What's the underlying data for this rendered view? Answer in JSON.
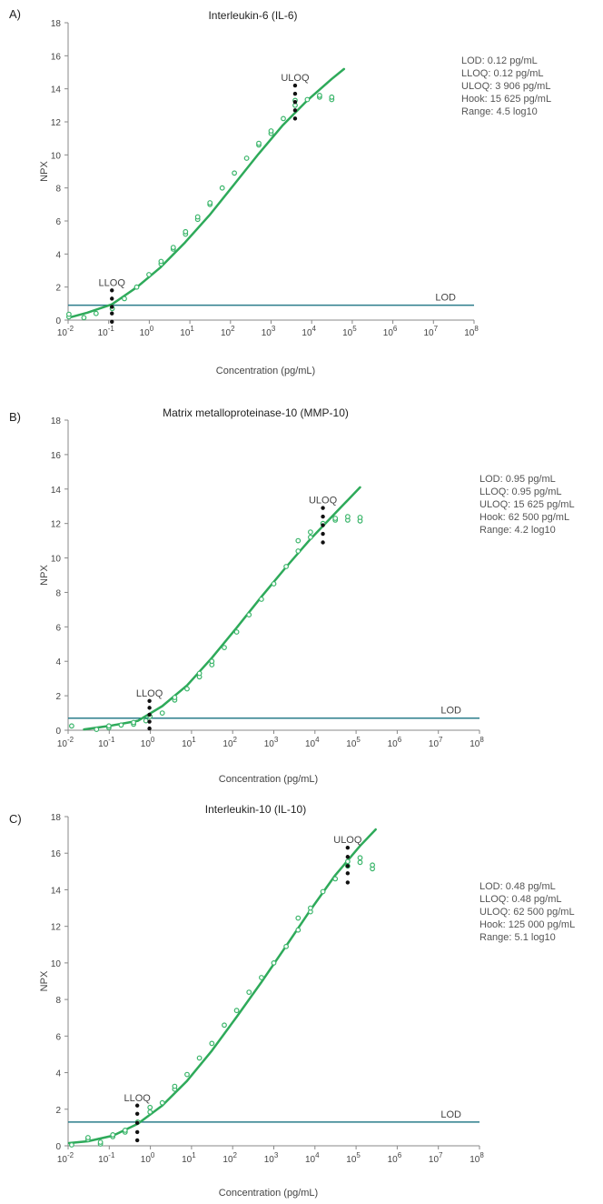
{
  "chart_data": [
    {
      "panel_label": "A)",
      "type": "scatter",
      "title": "Interleukin-6 (IL-6)",
      "xlabel": "Concentration (pg/mL)",
      "ylabel": "NPX",
      "x_scale": "log",
      "xlim_exp": [
        -2,
        8
      ],
      "ylim": [
        0,
        18
      ],
      "x_tick_exponents": [
        "-2",
        "-1",
        "0",
        "1",
        "2",
        "3",
        "4",
        "5",
        "6",
        "7",
        "8"
      ],
      "y_ticks": [
        0,
        2,
        4,
        6,
        8,
        10,
        12,
        14,
        16,
        18
      ],
      "grid": false,
      "lod_label": "LOD",
      "lloq_label": "LLOQ",
      "uloq_label": "ULOQ",
      "lod_value": 0.9,
      "lloq_x": 0.12,
      "uloq_x": 3906,
      "lloq_dots_y": [
        -0.1,
        0.4,
        0.8,
        1.3,
        1.8
      ],
      "uloq_dots_y": [
        12.2,
        12.7,
        13.2,
        13.7,
        14.2
      ],
      "info": [
        "LOD: 0.12 pg/mL",
        "LLOQ: 0.12 pg/mL",
        "ULOQ: 3 906 pg/mL",
        "Hook: 15 625 pg/mL",
        "Range: 4.5 log10"
      ],
      "series": [
        {
          "values": [
            [
              0.0105,
              0.15
            ],
            [
              0.03,
              0.45
            ],
            [
              0.12,
              0.95
            ],
            [
              0.5,
              2.0
            ],
            [
              1.9,
              3.2
            ],
            [
              7.6,
              4.7
            ],
            [
              30.5,
              6.35
            ],
            [
              122,
              8.2
            ],
            [
              488,
              10.05
            ],
            [
              1953,
              11.8
            ],
            [
              7812,
              13.3
            ],
            [
              31250,
              14.6
            ],
            [
              62500,
              15.2
            ]
          ]
        },
        {
          "values": [
            [
              0.0105,
              0.2
            ],
            [
              0.0105,
              0.35
            ],
            [
              0.0245,
              0.15
            ],
            [
              0.0488,
              0.4
            ],
            [
              0.122,
              0.7
            ],
            [
              0.244,
              1.3
            ],
            [
              0.488,
              2.0
            ],
            [
              0.98,
              2.75
            ],
            [
              1.95,
              3.4
            ],
            [
              1.95,
              3.55
            ],
            [
              3.9,
              4.3
            ],
            [
              3.9,
              4.4
            ],
            [
              7.8,
              5.2
            ],
            [
              7.8,
              5.35
            ],
            [
              15.6,
              6.1
            ],
            [
              15.6,
              6.25
            ],
            [
              31.2,
              7.0
            ],
            [
              31.2,
              7.1
            ],
            [
              62.5,
              8.0
            ],
            [
              125,
              8.9
            ],
            [
              250,
              9.8
            ],
            [
              500,
              10.6
            ],
            [
              500,
              10.7
            ],
            [
              1000,
              11.3
            ],
            [
              1000,
              11.45
            ],
            [
              2000,
              12.2
            ],
            [
              3906,
              13.0
            ],
            [
              3906,
              13.3
            ],
            [
              7812,
              13.35
            ],
            [
              15625,
              13.5
            ],
            [
              15625,
              13.6
            ],
            [
              31250,
              13.35
            ],
            [
              31250,
              13.5
            ]
          ]
        }
      ]
    },
    {
      "panel_label": "B)",
      "type": "scatter",
      "title": "Matrix metalloproteinase-10 (MMP-10)",
      "xlabel": "Concentration (pg/mL)",
      "ylabel": "NPX",
      "x_scale": "log",
      "xlim_exp": [
        -2,
        8
      ],
      "ylim": [
        0,
        18
      ],
      "x_tick_exponents": [
        "-2",
        "-1",
        "0",
        "1",
        "2",
        "3",
        "4",
        "5",
        "6",
        "7",
        "8"
      ],
      "y_ticks": [
        0,
        2,
        4,
        6,
        8,
        10,
        12,
        14,
        16,
        18
      ],
      "grid": false,
      "lod_label": "LOD",
      "lloq_label": "LLOQ",
      "uloq_label": "ULOQ",
      "lod_value": 0.7,
      "lloq_x": 0.95,
      "uloq_x": 15625,
      "lloq_dots_y": [
        0.1,
        0.5,
        0.9,
        1.3,
        1.7
      ],
      "uloq_dots_y": [
        10.9,
        11.4,
        11.9,
        12.4,
        12.9
      ],
      "info": [
        "LOD: 0.95 pg/mL",
        "LLOQ: 0.95 pg/mL",
        "ULOQ: 15 625 pg/mL",
        "Hook: 62 500 pg/mL",
        "Range: 4.2 log10"
      ],
      "series": [
        {
          "values": [
            [
              0.0244,
              0.05
            ],
            [
              0.1,
              0.25
            ],
            [
              0.5,
              0.55
            ],
            [
              1.95,
              1.4
            ],
            [
              7.8,
              2.6
            ],
            [
              31.2,
              4.2
            ],
            [
              125,
              5.95
            ],
            [
              500,
              7.75
            ],
            [
              1953,
              9.45
            ],
            [
              7812,
              11.1
            ],
            [
              31250,
              12.6
            ],
            [
              125000,
              14.1
            ]
          ]
        },
        {
          "values": [
            [
              0.0122,
              0.25
            ],
            [
              0.049,
              0.05
            ],
            [
              0.098,
              0.15
            ],
            [
              0.098,
              0.25
            ],
            [
              0.195,
              0.3
            ],
            [
              0.39,
              0.35
            ],
            [
              0.39,
              0.45
            ],
            [
              0.78,
              0.55
            ],
            [
              0.98,
              0.8
            ],
            [
              1.95,
              1.0
            ],
            [
              3.9,
              1.75
            ],
            [
              3.9,
              1.9
            ],
            [
              7.8,
              2.4
            ],
            [
              15.6,
              3.1
            ],
            [
              15.6,
              3.3
            ],
            [
              31.2,
              3.8
            ],
            [
              31.2,
              4.0
            ],
            [
              62.5,
              4.8
            ],
            [
              125,
              5.7
            ],
            [
              250,
              6.7
            ],
            [
              500,
              7.6
            ],
            [
              1000,
              8.5
            ],
            [
              2000,
              9.5
            ],
            [
              3906,
              10.4
            ],
            [
              3906,
              11.0
            ],
            [
              7812,
              11.2
            ],
            [
              7812,
              11.5
            ],
            [
              15625,
              12.0
            ],
            [
              31250,
              12.2
            ],
            [
              31250,
              12.3
            ],
            [
              62500,
              12.2
            ],
            [
              62500,
              12.4
            ],
            [
              125000,
              12.15
            ],
            [
              125000,
              12.35
            ]
          ]
        }
      ]
    },
    {
      "panel_label": "C)",
      "type": "scatter",
      "title": "Interleukin-10 (IL-10)",
      "xlabel": "Concentration (pg/mL)",
      "ylabel": "NPX",
      "x_scale": "log",
      "xlim_exp": [
        -2,
        8
      ],
      "ylim": [
        0,
        18
      ],
      "x_tick_exponents": [
        "-2",
        "-1",
        "0",
        "1",
        "2",
        "3",
        "4",
        "5",
        "6",
        "7",
        "8"
      ],
      "y_ticks": [
        0,
        2,
        4,
        6,
        8,
        10,
        12,
        14,
        16,
        18
      ],
      "grid": false,
      "lod_label": "LOD",
      "lloq_label": "LLOQ",
      "uloq_label": "ULOQ",
      "lod_value": 1.3,
      "lloq_x": 0.48,
      "uloq_x": 62500,
      "lloq_dots_y": [
        0.3,
        0.75,
        1.25,
        1.75,
        2.2
      ],
      "uloq_dots_y": [
        14.4,
        14.9,
        15.3,
        15.8,
        16.3
      ],
      "info": [
        "LOD: 0.48 pg/mL",
        "LLOQ: 0.48 pg/mL",
        "ULOQ: 62 500 pg/mL",
        "Hook: 125 000 pg/mL",
        "Range: 5.1 log10"
      ],
      "series": [
        {
          "values": [
            [
              0.0105,
              0.15
            ],
            [
              0.0305,
              0.25
            ],
            [
              0.122,
              0.55
            ],
            [
              0.49,
              1.2
            ],
            [
              1.95,
              2.2
            ],
            [
              7.8,
              3.55
            ],
            [
              31.2,
              5.2
            ],
            [
              125,
              7.05
            ],
            [
              500,
              8.95
            ],
            [
              1953,
              10.9
            ],
            [
              7812,
              12.9
            ],
            [
              31250,
              14.8
            ],
            [
              125000,
              16.4
            ],
            [
              300000,
              17.3
            ]
          ]
        },
        {
          "values": [
            [
              0.0122,
              0.05
            ],
            [
              0.0305,
              0.35
            ],
            [
              0.0305,
              0.45
            ],
            [
              0.061,
              0.1
            ],
            [
              0.061,
              0.2
            ],
            [
              0.122,
              0.5
            ],
            [
              0.122,
              0.6
            ],
            [
              0.244,
              0.75
            ],
            [
              0.244,
              0.85
            ],
            [
              0.49,
              1.3
            ],
            [
              0.98,
              1.85
            ],
            [
              0.98,
              2.1
            ],
            [
              1.95,
              2.35
            ],
            [
              3.9,
              3.1
            ],
            [
              3.9,
              3.25
            ],
            [
              7.8,
              3.9
            ],
            [
              15.6,
              4.8
            ],
            [
              31.2,
              5.6
            ],
            [
              62.5,
              6.6
            ],
            [
              125,
              7.4
            ],
            [
              250,
              8.4
            ],
            [
              500,
              9.2
            ],
            [
              1000,
              10.0
            ],
            [
              2000,
              10.9
            ],
            [
              3906,
              11.8
            ],
            [
              3906,
              12.45
            ],
            [
              7812,
              12.8
            ],
            [
              7812,
              13.0
            ],
            [
              15625,
              13.9
            ],
            [
              31250,
              14.6
            ],
            [
              62500,
              15.3
            ],
            [
              62500,
              15.55
            ],
            [
              125000,
              15.5
            ],
            [
              125000,
              15.75
            ],
            [
              250000,
              15.15
            ],
            [
              250000,
              15.35
            ]
          ]
        }
      ]
    }
  ],
  "colors": {
    "curve": "#2eaa5a",
    "points": "#3ab56a",
    "lod_line": "#2b7d8b",
    "quant_dots": "#111111"
  }
}
